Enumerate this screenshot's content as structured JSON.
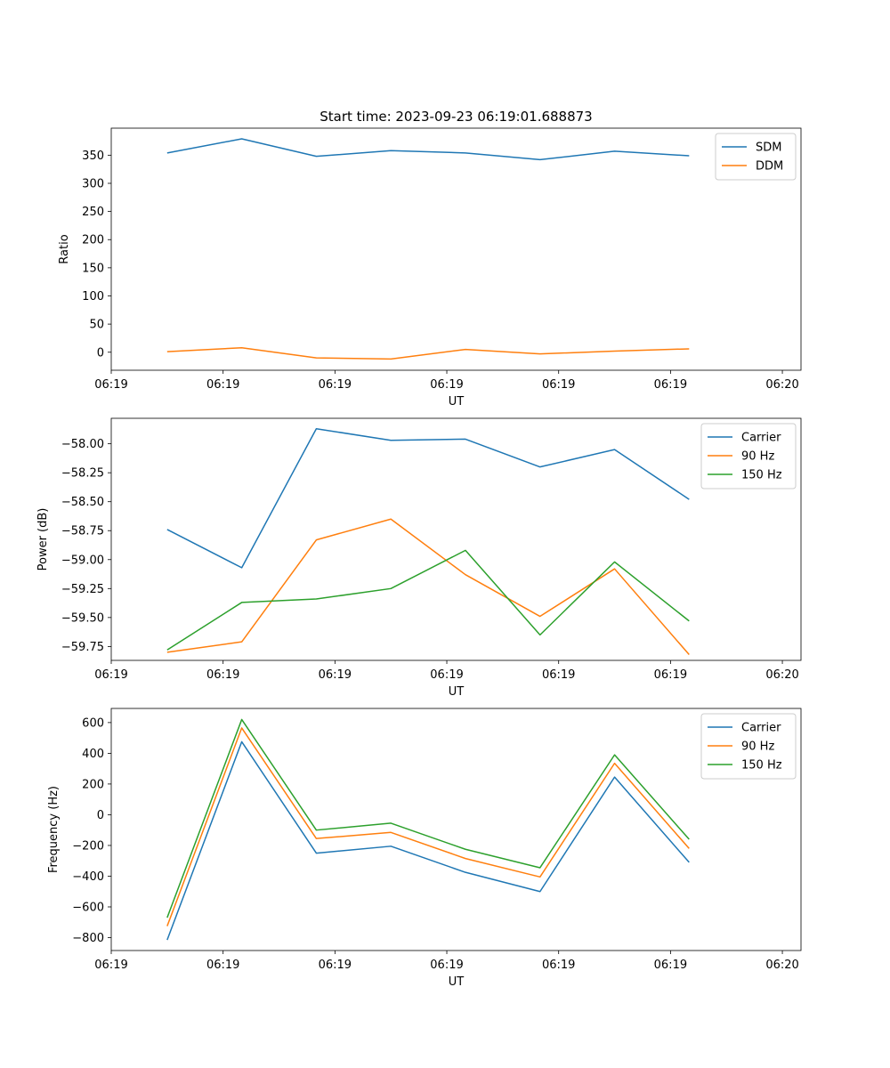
{
  "figure": {
    "title": "Start time: 2023-09-23 06:19:01.688873"
  },
  "chart_data": [
    {
      "type": "line",
      "title": "Start time: 2023-09-23 06:19:01.688873",
      "xlabel": "UT",
      "ylabel": "Ratio",
      "xlim": [
        -0.75,
        8.5
      ],
      "ylim": [
        -32,
        398
      ],
      "x_ticks": [
        {
          "value": -0.75,
          "label": "06:19"
        },
        {
          "value": 0.75,
          "label": "06:19"
        },
        {
          "value": 2.25,
          "label": "06:19"
        },
        {
          "value": 3.75,
          "label": "06:19"
        },
        {
          "value": 5.25,
          "label": "06:19"
        },
        {
          "value": 6.75,
          "label": "06:19"
        },
        {
          "value": 8.25,
          "label": "06:20"
        }
      ],
      "y_ticks": [
        {
          "value": 0,
          "label": "0"
        },
        {
          "value": 50,
          "label": "50"
        },
        {
          "value": 100,
          "label": "100"
        },
        {
          "value": 150,
          "label": "150"
        },
        {
          "value": 200,
          "label": "200"
        },
        {
          "value": 250,
          "label": "250"
        },
        {
          "value": 300,
          "label": "300"
        },
        {
          "value": 350,
          "label": "350"
        }
      ],
      "x": [
        0,
        1,
        2,
        3,
        4,
        5,
        6,
        7
      ],
      "series": [
        {
          "name": "SDM",
          "color": "#1f77b4",
          "values": [
            354,
            379,
            348,
            358,
            354,
            342,
            357,
            349
          ]
        },
        {
          "name": "DDM",
          "color": "#ff7f0e",
          "values": [
            1,
            8,
            -10,
            -12,
            5,
            -3,
            2,
            6
          ]
        }
      ],
      "legend": "top-right",
      "grid": false
    },
    {
      "type": "line",
      "title": "",
      "xlabel": "UT",
      "ylabel": "Power (dB)",
      "xlim": [
        -0.75,
        8.5
      ],
      "ylim": [
        -59.87,
        -57.78
      ],
      "x_ticks": [
        {
          "value": -0.75,
          "label": "06:19"
        },
        {
          "value": 0.75,
          "label": "06:19"
        },
        {
          "value": 2.25,
          "label": "06:19"
        },
        {
          "value": 3.75,
          "label": "06:19"
        },
        {
          "value": 5.25,
          "label": "06:19"
        },
        {
          "value": 6.75,
          "label": "06:19"
        },
        {
          "value": 8.25,
          "label": "06:20"
        }
      ],
      "y_ticks": [
        {
          "value": -58.0,
          "label": "−58.00"
        },
        {
          "value": -58.25,
          "label": "−58.25"
        },
        {
          "value": -58.5,
          "label": "−58.50"
        },
        {
          "value": -58.75,
          "label": "−58.75"
        },
        {
          "value": -59.0,
          "label": "−59.00"
        },
        {
          "value": -59.25,
          "label": "−59.25"
        },
        {
          "value": -59.5,
          "label": "−59.50"
        },
        {
          "value": -59.75,
          "label": "−59.75"
        }
      ],
      "x": [
        0,
        1,
        2,
        3,
        4,
        5,
        6,
        7
      ],
      "series": [
        {
          "name": "Carrier",
          "color": "#1f77b4",
          "values": [
            -58.74,
            -59.07,
            -57.87,
            -57.97,
            -57.96,
            -58.2,
            -58.05,
            -58.48
          ]
        },
        {
          "name": "90 Hz",
          "color": "#ff7f0e",
          "values": [
            -59.8,
            -59.71,
            -58.83,
            -58.65,
            -59.13,
            -59.49,
            -59.08,
            -59.82
          ]
        },
        {
          "name": "150 Hz",
          "color": "#2ca02c",
          "values": [
            -59.78,
            -59.37,
            -59.34,
            -59.25,
            -58.92,
            -59.65,
            -59.02,
            -59.53
          ]
        }
      ],
      "legend": "top-right",
      "grid": false
    },
    {
      "type": "line",
      "title": "",
      "xlabel": "UT",
      "ylabel": "Frequency (Hz)",
      "xlim": [
        -0.75,
        8.5
      ],
      "ylim": [
        -884,
        692
      ],
      "x_ticks": [
        {
          "value": -0.75,
          "label": "06:19"
        },
        {
          "value": 0.75,
          "label": "06:19"
        },
        {
          "value": 2.25,
          "label": "06:19"
        },
        {
          "value": 3.75,
          "label": "06:19"
        },
        {
          "value": 5.25,
          "label": "06:19"
        },
        {
          "value": 6.75,
          "label": "06:19"
        },
        {
          "value": 8.25,
          "label": "06:20"
        }
      ],
      "y_ticks": [
        {
          "value": -800,
          "label": "−800"
        },
        {
          "value": -600,
          "label": "−600"
        },
        {
          "value": -400,
          "label": "−400"
        },
        {
          "value": -200,
          "label": "−200"
        },
        {
          "value": 0,
          "label": "0"
        },
        {
          "value": 200,
          "label": "200"
        },
        {
          "value": 400,
          "label": "400"
        },
        {
          "value": 600,
          "label": "600"
        }
      ],
      "x": [
        0,
        1,
        2,
        3,
        4,
        5,
        6,
        7
      ],
      "series": [
        {
          "name": "Carrier",
          "color": "#1f77b4",
          "values": [
            -815,
            475,
            -250,
            -205,
            -375,
            -500,
            245,
            -310
          ]
        },
        {
          "name": "90 Hz",
          "color": "#ff7f0e",
          "values": [
            -725,
            565,
            -155,
            -115,
            -285,
            -405,
            335,
            -220
          ]
        },
        {
          "name": "150 Hz",
          "color": "#2ca02c",
          "values": [
            -670,
            620,
            -100,
            -55,
            -225,
            -345,
            390,
            -160
          ]
        }
      ],
      "legend": "top-right",
      "grid": false
    }
  ]
}
